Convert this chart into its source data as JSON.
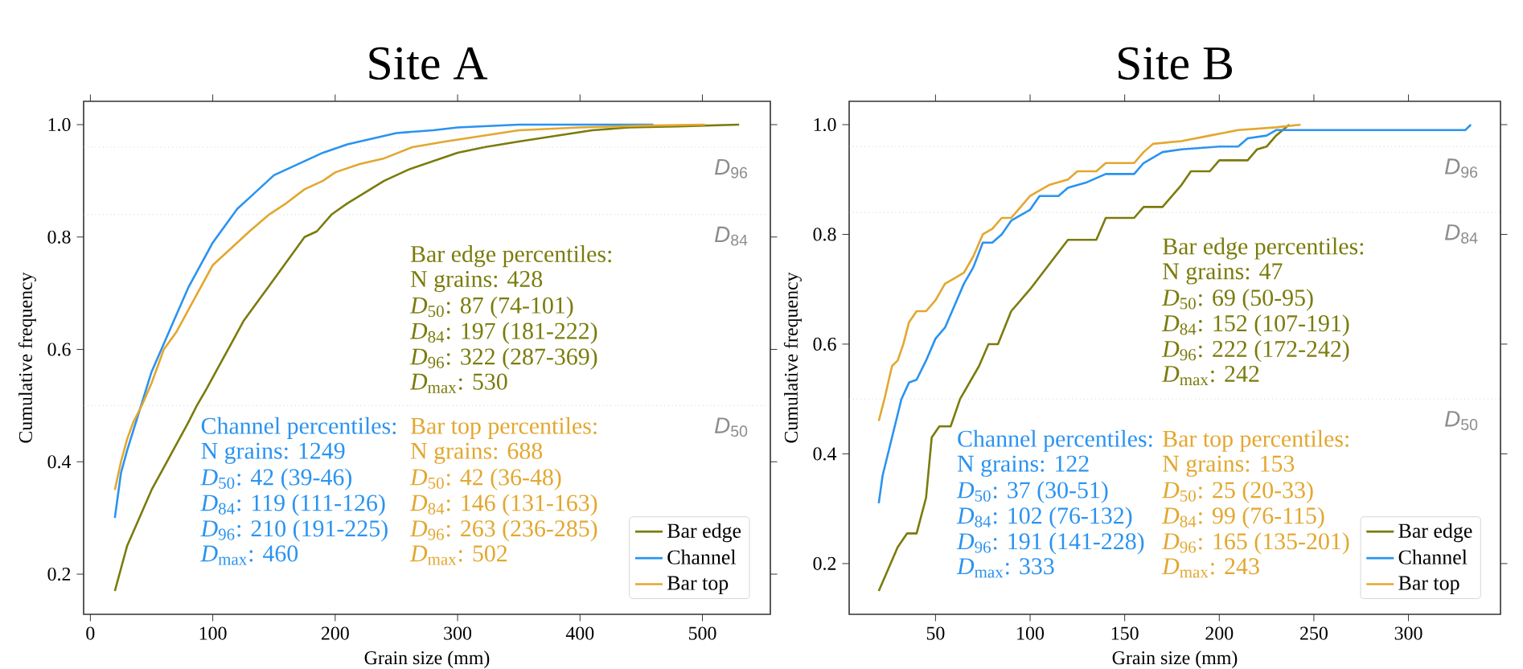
{
  "chart_data": [
    {
      "type": "line",
      "title": "Site A",
      "xlabel": "Grain size (mm)",
      "ylabel": "Cumulative frequency",
      "xlim": [
        -5.5,
        555.5
      ],
      "ylim": [
        0.1285,
        1.0415
      ],
      "xticks": [
        0,
        100,
        200,
        300,
        400,
        500
      ],
      "yticks": [
        0.2,
        0.4,
        0.6,
        0.8,
        {
          "value": 1.0,
          "label": "1.0"
        }
      ],
      "legend": "bottom right",
      "series": [
        {
          "name": "Bar edge",
          "color": "#7b7b0c",
          "x": [
            20,
            25,
            30,
            40,
            50,
            60,
            70,
            80,
            87,
            95,
            105,
            115,
            125,
            135,
            145,
            155,
            165,
            175,
            185,
            197,
            210,
            225,
            240,
            260,
            280,
            300,
            322,
            350,
            380,
            410,
            440,
            480,
            530
          ],
          "values": [
            0.17,
            0.21,
            0.25,
            0.3,
            0.35,
            0.39,
            0.43,
            0.47,
            0.5,
            0.53,
            0.57,
            0.61,
            0.65,
            0.68,
            0.71,
            0.74,
            0.77,
            0.8,
            0.81,
            0.84,
            0.86,
            0.88,
            0.9,
            0.92,
            0.935,
            0.95,
            0.96,
            0.97,
            0.98,
            0.99,
            0.995,
            0.997,
            1.0
          ]
        },
        {
          "name": "Channel",
          "color": "#2a93f0",
          "x": [
            20,
            25,
            30,
            40,
            50,
            60,
            70,
            80,
            90,
            100,
            110,
            120,
            130,
            140,
            150,
            160,
            175,
            190,
            210,
            230,
            250,
            280,
            300,
            350,
            460
          ],
          "values": [
            0.3,
            0.38,
            0.42,
            0.49,
            0.56,
            0.61,
            0.66,
            0.71,
            0.75,
            0.79,
            0.82,
            0.85,
            0.87,
            0.89,
            0.91,
            0.92,
            0.935,
            0.95,
            0.965,
            0.975,
            0.985,
            0.99,
            0.995,
            1.0,
            1.0
          ]
        },
        {
          "name": "Bar top",
          "color": "#e3a72f",
          "x": [
            20,
            25,
            30,
            35,
            42,
            50,
            60,
            70,
            80,
            90,
            100,
            110,
            120,
            130,
            146,
            160,
            175,
            190,
            200,
            220,
            240,
            263,
            290,
            320,
            350,
            400,
            450,
            502
          ],
          "values": [
            0.35,
            0.4,
            0.44,
            0.47,
            0.5,
            0.54,
            0.6,
            0.63,
            0.67,
            0.71,
            0.75,
            0.77,
            0.79,
            0.81,
            0.84,
            0.86,
            0.885,
            0.9,
            0.915,
            0.93,
            0.94,
            0.96,
            0.97,
            0.98,
            0.99,
            0.995,
            0.998,
            1.0
          ]
        }
      ],
      "ref_lines": [
        {
          "axis": "y",
          "value": 0.96,
          "label": "*D*$_{96}$",
          "color": "#bbbbbb",
          "line_style": "dotted"
        },
        {
          "axis": "y",
          "value": 0.84,
          "label": "*D*$_{84}$",
          "color": "#bbbbbb",
          "line_style": "dotted"
        },
        {
          "axis": "y",
          "value": 0.5,
          "label": "*D*$_{50}$",
          "color": "#bbbbbb",
          "line_style": "dotted"
        }
      ],
      "annotations": [
        "Bar edge percentiles:",
        "N grains: 428",
        "*D*$_{50}$: 87 (74-101)",
        "*D*$_{84}$: 197 (181-222)",
        "*D*$_{96}$: 322 (287-369)",
        "*D*$_{max}$: 530",
        "Channel percentiles:",
        "N grains: 1249",
        "*D*$_{50}$: 42 (39-46)",
        "*D*$_{84}$: 119 (111-126)",
        "*D*$_{96}$: 210 (191-225)",
        "*D*$_{max}$: 460",
        "Bar top percentiles:",
        "N grains: 688",
        "*D*$_{50}$: 42 (36-48)",
        "*D*$_{84}$: 146 (131-163)",
        "*D*$_{96}$: 263 (236-285)",
        "*D*$_{max}$: 502"
      ]
    },
    {
      "type": "line",
      "title": "Site B",
      "xlabel": "Grain size (mm)",
      "ylabel": "Cumulative frequency",
      "xlim": [
        4.35,
        348.65
      ],
      "ylim": [
        0.1075,
        1.0425
      ],
      "xticks": [
        50,
        100,
        150,
        200,
        250,
        300
      ],
      "yticks": [
        0.2,
        0.4,
        0.6,
        0.8,
        {
          "value": 1.0,
          "label": "1.0"
        }
      ],
      "legend": "bottom right",
      "series": [
        {
          "name": "Bar edge",
          "color": "#7b7b0c",
          "x": [
            20,
            25,
            30,
            35,
            40,
            45,
            48,
            52,
            58,
            63,
            68,
            73,
            78,
            83,
            90,
            100,
            110,
            120,
            135,
            140,
            155,
            160,
            170,
            180,
            185,
            195,
            200,
            215,
            220,
            225,
            230,
            237
          ],
          "values": [
            0.15,
            0.19,
            0.23,
            0.255,
            0.255,
            0.32,
            0.43,
            0.45,
            0.45,
            0.5,
            0.53,
            0.56,
            0.6,
            0.6,
            0.66,
            0.7,
            0.745,
            0.79,
            0.79,
            0.83,
            0.83,
            0.85,
            0.85,
            0.89,
            0.915,
            0.915,
            0.935,
            0.935,
            0.955,
            0.96,
            0.98,
            1.0
          ]
        },
        {
          "name": "Channel",
          "color": "#2a93f0",
          "x": [
            20,
            22,
            27,
            32,
            36,
            40,
            45,
            50,
            55,
            60,
            65,
            70,
            75,
            80,
            85,
            90,
            100,
            105,
            115,
            120,
            130,
            140,
            155,
            160,
            170,
            180,
            200,
            210,
            215,
            225,
            230,
            240,
            330,
            333
          ],
          "values": [
            0.31,
            0.36,
            0.43,
            0.5,
            0.53,
            0.535,
            0.57,
            0.61,
            0.63,
            0.67,
            0.71,
            0.74,
            0.785,
            0.785,
            0.8,
            0.825,
            0.845,
            0.87,
            0.87,
            0.885,
            0.895,
            0.91,
            0.91,
            0.93,
            0.95,
            0.955,
            0.96,
            0.96,
            0.975,
            0.98,
            0.99,
            0.99,
            0.99,
            1.0
          ]
        },
        {
          "name": "Bar top",
          "color": "#e3a72f",
          "x": [
            20,
            23,
            27,
            30,
            33,
            36,
            40,
            45,
            50,
            55,
            60,
            65,
            70,
            75,
            80,
            85,
            90,
            100,
            105,
            110,
            120,
            125,
            135,
            140,
            155,
            160,
            165,
            180,
            195,
            210,
            230,
            243
          ],
          "values": [
            0.46,
            0.5,
            0.56,
            0.57,
            0.6,
            0.64,
            0.66,
            0.66,
            0.68,
            0.71,
            0.72,
            0.73,
            0.76,
            0.8,
            0.81,
            0.83,
            0.83,
            0.87,
            0.88,
            0.89,
            0.9,
            0.915,
            0.915,
            0.93,
            0.93,
            0.95,
            0.965,
            0.97,
            0.98,
            0.99,
            0.995,
            1.0
          ]
        }
      ],
      "ref_lines": [
        {
          "axis": "y",
          "value": 0.96,
          "label": "*D*$_{96}$",
          "color": "#bbbbbb",
          "line_style": "dotted"
        },
        {
          "axis": "y",
          "value": 0.84,
          "label": "*D*$_{84}$",
          "color": "#bbbbbb",
          "line_style": "dotted"
        },
        {
          "axis": "y",
          "value": 0.5,
          "label": "*D*$_{50}$",
          "color": "#bbbbbb",
          "line_style": "dotted"
        }
      ],
      "annotations": [
        "Bar edge percentiles:",
        "N grains: 47",
        "*D*$_{50}$: 69 (50-95)",
        "*D*$_{84}$: 152 (107-191)",
        "*D*$_{96}$: 222 (172-242)",
        "*D*$_{max}$: 242",
        "Channel percentiles:",
        "N grains: 122",
        "*D*$_{50}$: 37 (30-51)",
        "*D*$_{84}$: 102 (76-132)",
        "*D*$_{96}$: 191 (141-228)",
        "*D*$_{max}$: 333",
        "Bar top percentiles:",
        "N grains: 153",
        "*D*$_{50}$: 25 (20-33)",
        "*D*$_{84}$: 99 (76-115)",
        "*D*$_{96}$: 165 (135-201)",
        "*D*$_{max}$: 243"
      ]
    }
  ]
}
